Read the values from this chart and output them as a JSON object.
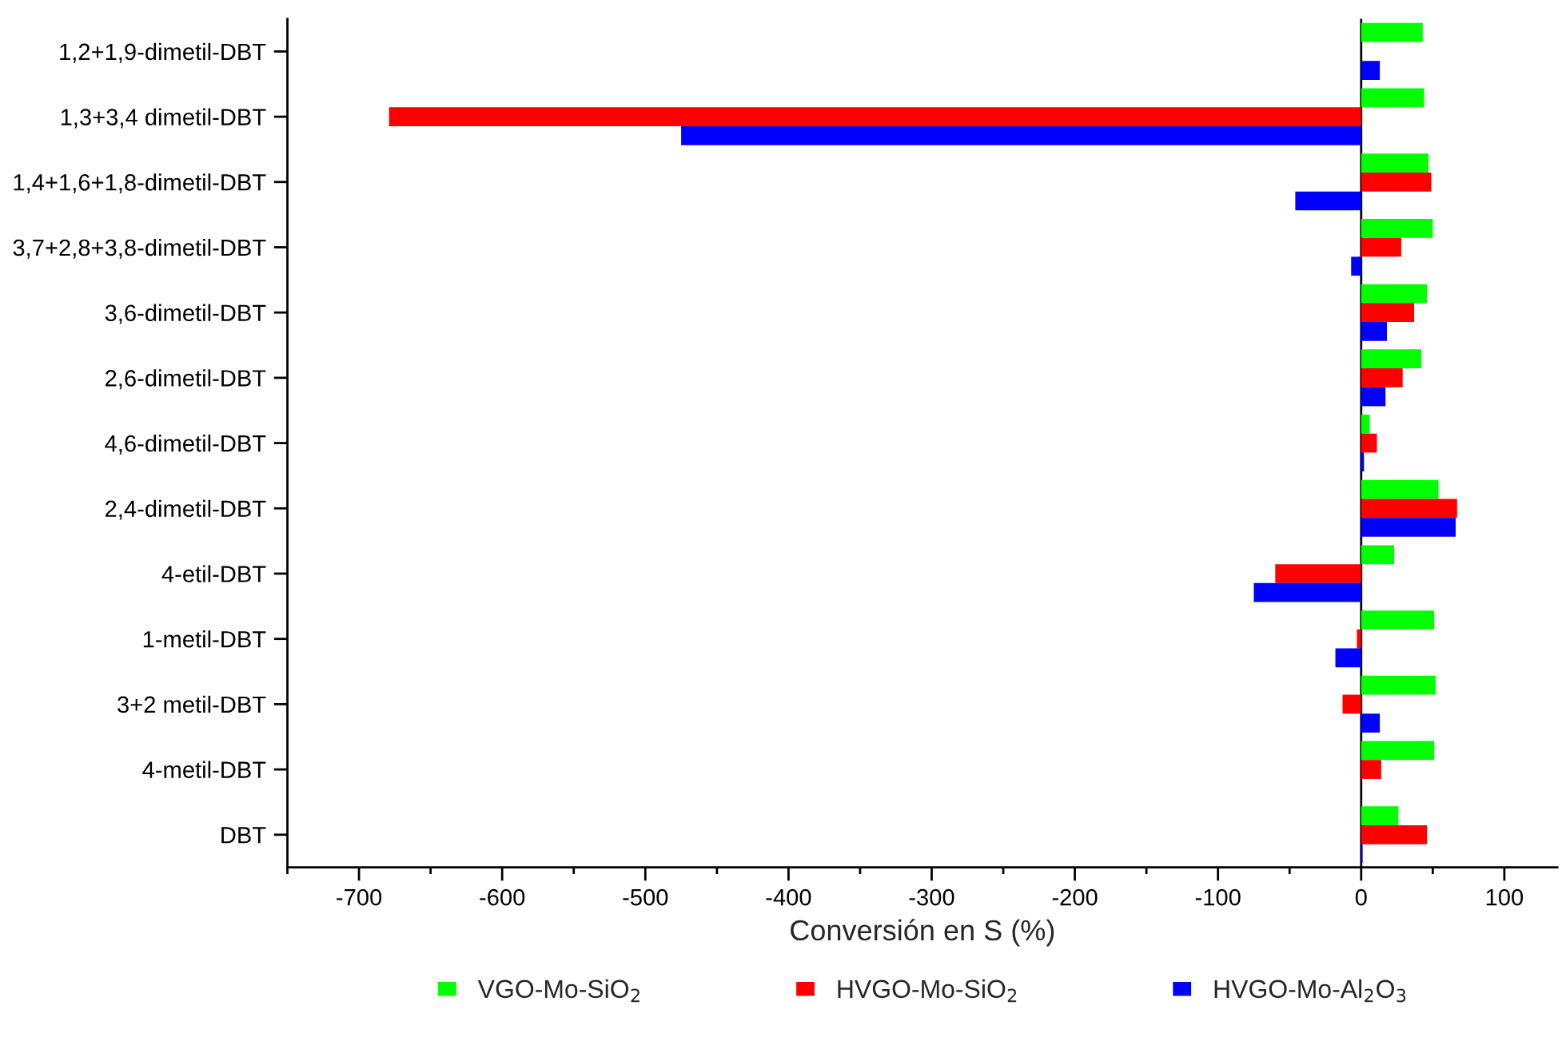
{
  "chart_data": {
    "type": "bar",
    "orientation": "horizontal",
    "xlabel": "Conversión en S (%)",
    "categories": [
      "1,2+1,9-dimetil-DBT",
      "1,3+3,4 dimetil-DBT",
      "1,4+1,6+1,8-dimetil-DBT",
      "3,7+2,8+3,8-dimetil-DBT",
      "3,6-dimetil-DBT",
      "2,6-dimetil-DBT",
      "4,6-dimetil-DBT",
      "2,4-dimetil-DBT",
      "4-etil-DBT",
      "1-metil-DBT",
      "3+2 metil-DBT",
      "4-metil-DBT",
      "DBT"
    ],
    "series": [
      {
        "name": "VGO-Mo-SiO$_{2}$",
        "color": "#00ff00",
        "values": [
          43,
          44,
          47,
          50,
          46,
          42,
          6,
          54,
          23,
          51,
          52,
          51,
          26
        ]
      },
      {
        "name": "HVGO-Mo-SiO$_{2}$",
        "color": "#ff0000",
        "values": [
          null,
          -679,
          49,
          28,
          37,
          29,
          11,
          67,
          -60,
          -3,
          -13,
          14,
          46
        ]
      },
      {
        "name": "HVGO-Mo-Al$_{2}$O$_{3}$",
        "color": "#0000ff",
        "values": [
          13,
          -475,
          -46,
          -7,
          18,
          17,
          2,
          66,
          -75,
          -18,
          13,
          null,
          1
        ]
      }
    ],
    "xlim": [
      -750,
      137
    ],
    "xticks": [
      {
        "value": -750,
        "label": null
      },
      -700,
      {
        "value": -650,
        "label": null
      },
      -600,
      {
        "value": -550,
        "label": null
      },
      -500,
      {
        "value": -450,
        "label": null
      },
      -400,
      {
        "value": -350,
        "label": null
      },
      -300,
      {
        "value": -250,
        "label": null
      },
      -200,
      {
        "value": -150,
        "label": null
      },
      -100,
      {
        "value": -50,
        "label": null
      },
      0,
      {
        "value": 50,
        "label": null
      },
      100
    ],
    "ref_lines": [
      {
        "axis": "x",
        "value": 0,
        "color": "#000000"
      }
    ],
    "grid": false,
    "legend": "bottom"
  }
}
